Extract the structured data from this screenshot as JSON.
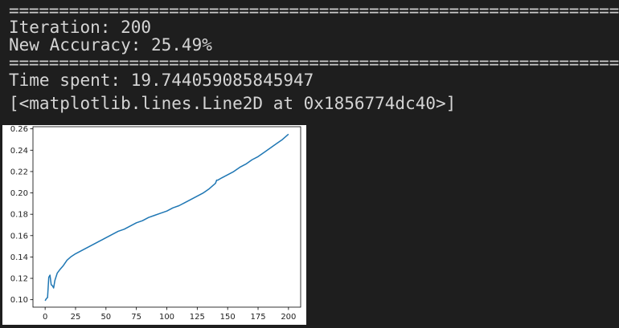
{
  "console": {
    "separator_top": "==============================================================================",
    "iteration_line": "Iteration: 200",
    "accuracy_line": "New Accuracy: 25.49%",
    "separator_bottom": "==============================================================================",
    "time_line": "Time spent: 19.744059085845947",
    "repr_line": "[<matplotlib.lines.Line2D at 0x1856774dc40>]"
  },
  "chart_data": {
    "type": "line",
    "title": "",
    "xlabel": "",
    "ylabel": "",
    "xlim": [
      -10,
      210
    ],
    "ylim": [
      0.093,
      0.262
    ],
    "xticks": [
      0,
      25,
      50,
      75,
      100,
      125,
      150,
      175,
      200
    ],
    "yticks": [
      0.1,
      0.12,
      0.14,
      0.16,
      0.18,
      0.2,
      0.22,
      0.24,
      0.26
    ],
    "ytick_labels": [
      "0.10",
      "0.12",
      "0.14",
      "0.16",
      "0.18",
      "0.20",
      "0.22",
      "0.24",
      "0.26"
    ],
    "grid": false,
    "line_color": "#1f77b4",
    "series": [
      {
        "x": [
          0,
          1,
          2,
          3,
          4,
          5,
          6,
          7,
          8,
          10,
          12,
          15,
          18,
          21,
          25,
          30,
          35,
          40,
          45,
          50,
          55,
          60,
          65,
          70,
          75,
          80,
          85,
          90,
          95,
          100,
          105,
          110,
          115,
          120,
          125,
          130,
          135,
          138,
          140,
          141,
          142,
          145,
          150,
          155,
          160,
          165,
          170,
          175,
          180,
          185,
          190,
          195,
          200
        ],
        "y": [
          0.099,
          0.101,
          0.102,
          0.121,
          0.123,
          0.114,
          0.113,
          0.111,
          0.118,
          0.125,
          0.128,
          0.132,
          0.137,
          0.14,
          0.143,
          0.146,
          0.149,
          0.152,
          0.155,
          0.158,
          0.161,
          0.164,
          0.166,
          0.169,
          0.172,
          0.174,
          0.177,
          0.179,
          0.181,
          0.183,
          0.186,
          0.188,
          0.191,
          0.194,
          0.197,
          0.2,
          0.204,
          0.207,
          0.209,
          0.212,
          0.212,
          0.214,
          0.217,
          0.22,
          0.224,
          0.227,
          0.231,
          0.234,
          0.238,
          0.242,
          0.246,
          0.25,
          0.255
        ]
      }
    ]
  }
}
